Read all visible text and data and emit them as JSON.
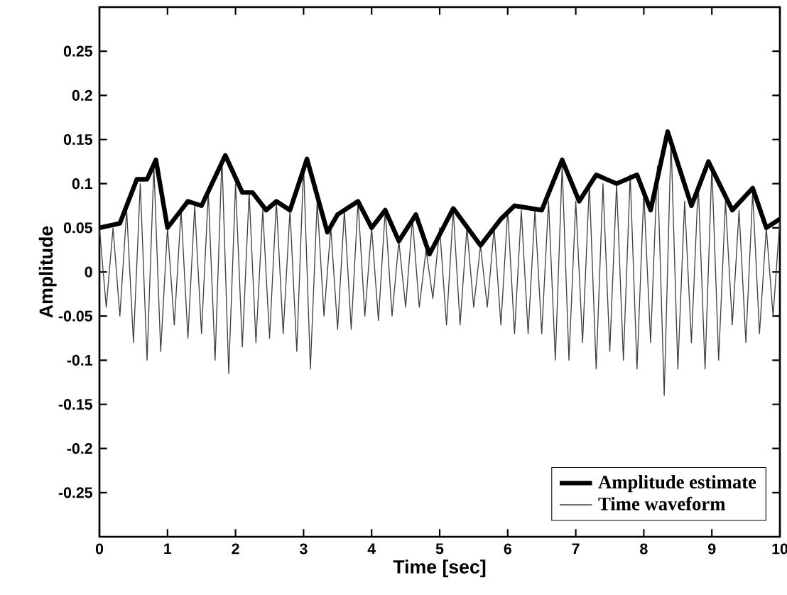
{
  "chart_data": {
    "type": "line",
    "xlabel": "Time [sec]",
    "ylabel": "Amplitude",
    "xlim": [
      0,
      10
    ],
    "ylim": [
      -0.3,
      0.3
    ],
    "xticks": [
      0,
      1,
      2,
      3,
      4,
      5,
      6,
      7,
      8,
      9,
      10
    ],
    "yticks": [
      -0.25,
      -0.2,
      -0.15,
      -0.1,
      -0.05,
      0,
      0.05,
      0.1,
      0.15,
      0.2,
      0.25
    ],
    "legend": "bottom right",
    "grid": false,
    "marker": "none",
    "line_style": "solid",
    "series": [
      {
        "name": "Amplitude estimate",
        "color": "#000000",
        "x": [
          0,
          0.3,
          0.55,
          0.7,
          0.83,
          1.0,
          1.3,
          1.5,
          1.85,
          2.1,
          2.25,
          2.45,
          2.6,
          2.8,
          3.05,
          3.35,
          3.5,
          3.8,
          4.0,
          4.2,
          4.4,
          4.65,
          4.85,
          5.2,
          5.6,
          5.9,
          6.1,
          6.5,
          6.8,
          7.05,
          7.3,
          7.6,
          7.9,
          8.1,
          8.35,
          8.7,
          8.95,
          9.3,
          9.6,
          9.8,
          10
        ],
        "values": [
          0.05,
          0.055,
          0.105,
          0.105,
          0.127,
          0.05,
          0.08,
          0.075,
          0.132,
          0.09,
          0.09,
          0.07,
          0.08,
          0.07,
          0.128,
          0.045,
          0.065,
          0.08,
          0.05,
          0.07,
          0.035,
          0.065,
          0.02,
          0.072,
          0.03,
          0.06,
          0.075,
          0.07,
          0.127,
          0.08,
          0.11,
          0.1,
          0.11,
          0.07,
          0.159,
          0.075,
          0.125,
          0.07,
          0.095,
          0.05,
          0.06
        ]
      },
      {
        "name": "Time waveform",
        "color": "#404040",
        "x": [
          0,
          0.1,
          0.2,
          0.3,
          0.4,
          0.5,
          0.6,
          0.7,
          0.8,
          0.9,
          1,
          1.1,
          1.2,
          1.3,
          1.4,
          1.5,
          1.6,
          1.7,
          1.8,
          1.9,
          2,
          2.1,
          2.2,
          2.3,
          2.4,
          2.5,
          2.6,
          2.7,
          2.8,
          2.9,
          3,
          3.1,
          3.2,
          3.3,
          3.4,
          3.5,
          3.6,
          3.7,
          3.8,
          3.9,
          4,
          4.1,
          4.2,
          4.3,
          4.4,
          4.5,
          4.6,
          4.7,
          4.8,
          4.9,
          5,
          5.1,
          5.2,
          5.3,
          5.4,
          5.5,
          5.6,
          5.7,
          5.8,
          5.9,
          6,
          6.1,
          6.2,
          6.3,
          6.4,
          6.5,
          6.6,
          6.7,
          6.8,
          6.9,
          7,
          7.1,
          7.2,
          7.3,
          7.4,
          7.5,
          7.6,
          7.7,
          7.8,
          7.9,
          8,
          8.1,
          8.2,
          8.3,
          8.4,
          8.5,
          8.6,
          8.7,
          8.8,
          8.9,
          9,
          9.1,
          9.2,
          9.3,
          9.4,
          9.5,
          9.6,
          9.7,
          9.8,
          9.9,
          10
        ],
        "values": [
          0.05,
          -0.04,
          0.05,
          -0.05,
          0.07,
          -0.08,
          0.1,
          -0.1,
          0.12,
          -0.09,
          0.05,
          -0.06,
          0.07,
          -0.075,
          0.075,
          -0.07,
          0.09,
          -0.1,
          0.13,
          -0.115,
          0.1,
          -0.085,
          0.09,
          -0.08,
          0.07,
          -0.075,
          0.08,
          -0.07,
          0.07,
          -0.09,
          0.12,
          -0.11,
          0.08,
          -0.05,
          0.05,
          -0.065,
          0.07,
          -0.065,
          0.08,
          -0.05,
          0.05,
          -0.055,
          0.07,
          -0.05,
          0.035,
          -0.04,
          0.06,
          -0.04,
          0.025,
          -0.03,
          0.05,
          -0.06,
          0.07,
          -0.06,
          0.05,
          -0.04,
          0.03,
          -0.04,
          0.05,
          -0.06,
          0.07,
          -0.07,
          0.07,
          -0.07,
          0.07,
          -0.07,
          0.08,
          -0.1,
          0.12,
          -0.1,
          0.08,
          -0.08,
          0.1,
          -0.11,
          0.1,
          -0.09,
          0.1,
          -0.1,
          0.11,
          -0.11,
          0.09,
          -0.08,
          0.12,
          -0.14,
          0.15,
          -0.11,
          0.08,
          -0.08,
          0.1,
          -0.11,
          0.12,
          -0.1,
          0.08,
          -0.06,
          0.07,
          -0.08,
          0.09,
          -0.07,
          0.05,
          -0.05,
          0.06
        ]
      }
    ]
  }
}
